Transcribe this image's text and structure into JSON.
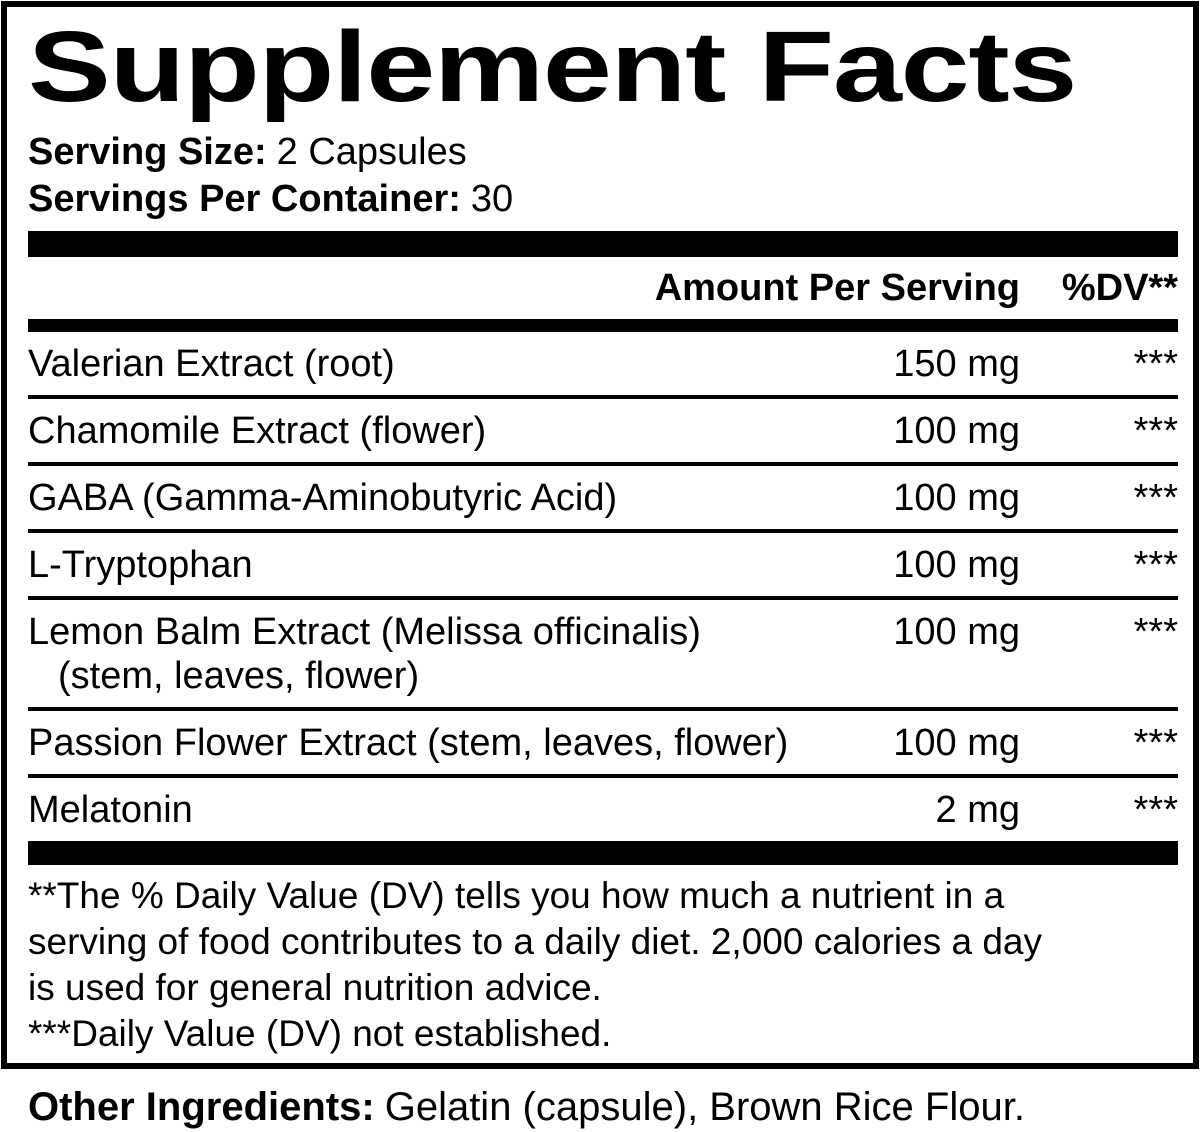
{
  "label": {
    "title": "Supplement Facts",
    "serving_info": {
      "size_label": "Serving Size:",
      "size_value": "2 Capsules",
      "container_label": "Servings Per Container:",
      "container_value": "30"
    },
    "header": {
      "amount_column": "Amount Per Serving",
      "dv_column": "%DV**"
    },
    "rows": [
      {
        "name": "Valerian Extract (root)",
        "amount": "150 mg",
        "dv": "***"
      },
      {
        "name": "Chamomile Extract (flower)",
        "amount": "100 mg",
        "dv": "***"
      },
      {
        "name": "GABA (Gamma-Aminobutyric Acid)",
        "amount": "100 mg",
        "dv": "***"
      },
      {
        "name": "L-Tryptophan",
        "amount": "100 mg",
        "dv": "***"
      },
      {
        "name": "Lemon Balm Extract (Melissa officinalis)",
        "name_line2": "(stem, leaves, flower)",
        "amount": "100 mg",
        "dv": "***"
      },
      {
        "name": "Passion Flower Extract (stem, leaves, flower)",
        "amount": "100 mg",
        "dv": "***"
      },
      {
        "name": "Melatonin",
        "amount": "2 mg",
        "dv": "***"
      }
    ],
    "footnote": {
      "lines": [
        "**The % Daily Value (DV) tells you how much a nutrient in a",
        "serving of food contributes to a daily diet. 2,000 calories a day",
        "is used for general nutrition advice.",
        "***Daily Value (DV) not established."
      ]
    },
    "other_ingredients": {
      "label": "Other Ingredients:",
      "value": "Gelatin (capsule), Brown Rice Flour."
    },
    "colors": {
      "text": "#000000",
      "background": "#ffffff"
    }
  }
}
